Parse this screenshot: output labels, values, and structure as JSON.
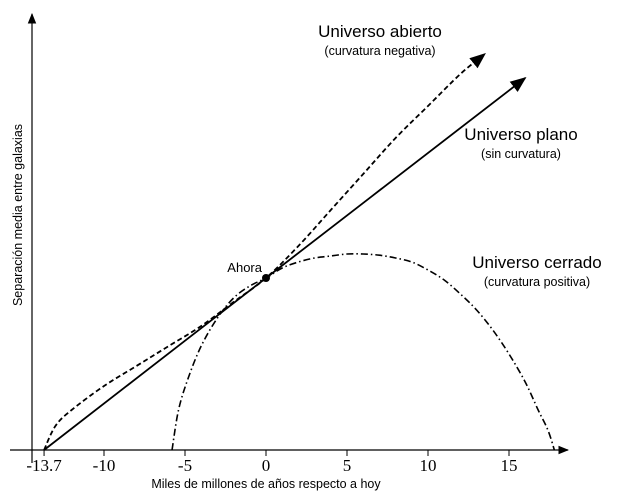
{
  "chart_data": {
    "type": "line",
    "xlabel": "Miles de millones de años respecto a hoy",
    "ylabel": "Separación media entre galaxias",
    "x_ticks": [
      "-13.7",
      "-10",
      "-5",
      "0",
      "5",
      "10",
      "15"
    ],
    "x_tick_values": [
      -13.7,
      -10,
      -5,
      0,
      5,
      10,
      15
    ],
    "xlim": [
      -14.9,
      19
    ],
    "ylim": [
      0,
      1.0
    ],
    "now_point": {
      "label": "Ahora",
      "x": 0,
      "y": 0.43
    },
    "series": [
      {
        "name": "Universo abierto",
        "subtitle": "(curvatura negativa)",
        "style": "dashed",
        "x": [
          -13.7,
          -13.0,
          -12.0,
          -10.0,
          -8.0,
          -6.0,
          -4.0,
          -2.0,
          0.0,
          2.0,
          4.0,
          6.0,
          8.0,
          10.0,
          12.0,
          13.5
        ],
        "y": [
          0.0,
          0.06,
          0.1,
          0.16,
          0.21,
          0.26,
          0.31,
          0.37,
          0.43,
          0.51,
          0.6,
          0.69,
          0.78,
          0.86,
          0.94,
          0.99
        ]
      },
      {
        "name": "Universo plano",
        "subtitle": "(sin curvatura)",
        "style": "solid",
        "x": [
          -13.7,
          0.0,
          16.0
        ],
        "y": [
          0.0,
          0.43,
          0.93
        ]
      },
      {
        "name": "Universo cerrado",
        "subtitle": "(curvatura positiva)",
        "style": "dashdot",
        "x": [
          -5.8,
          -5.4,
          -4.8,
          -4.0,
          -3.0,
          -2.0,
          -1.0,
          0.0,
          1.0,
          2.0,
          3.0,
          4.0,
          5.0,
          6.0,
          7.0,
          8.0,
          9.0,
          10.0,
          11.0,
          12.0,
          13.0,
          14.0,
          15.0,
          16.0,
          16.8,
          17.4,
          17.8
        ],
        "y": [
          0.0,
          0.1,
          0.18,
          0.26,
          0.33,
          0.38,
          0.41,
          0.43,
          0.455,
          0.47,
          0.48,
          0.485,
          0.49,
          0.49,
          0.487,
          0.48,
          0.47,
          0.45,
          0.425,
          0.39,
          0.35,
          0.3,
          0.24,
          0.17,
          0.1,
          0.05,
          0.0
        ]
      }
    ]
  }
}
